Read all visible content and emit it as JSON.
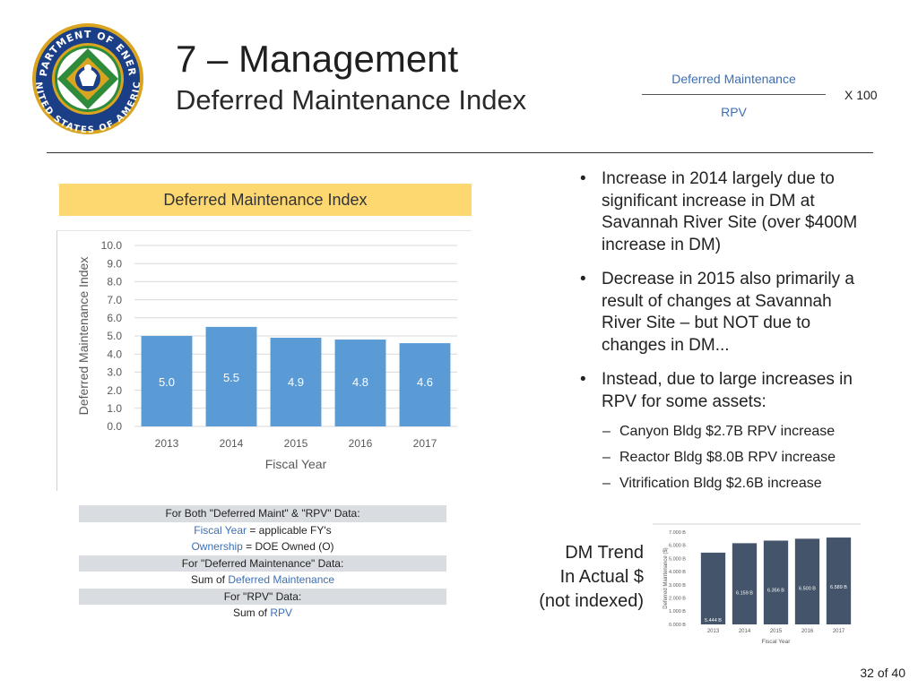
{
  "logo": {
    "name": "doe-seal",
    "text": "DEPARTMENT OF ENERGY UNITED STATES OF AMERICA",
    "colors": {
      "ring": "#1b3f86",
      "gold": "#d9a520",
      "green": "#2e8b3c",
      "white": "#ffffff"
    }
  },
  "header": {
    "title": "7 – Management",
    "subtitle": "Deferred Maintenance Index"
  },
  "formula": {
    "numerator": "Deferred Maintenance",
    "denominator": "RPV",
    "multiplier": "X  100"
  },
  "main_chart": {
    "header": "Deferred Maintenance Index"
  },
  "bullets": [
    {
      "text": "Increase in 2014 largely due to significant increase in DM at Savannah River Site (over $400M increase in DM)"
    },
    {
      "text": "Decrease in 2015 also primarily a result of changes at Savannah River Site – but NOT due to changes in DM..."
    },
    {
      "text": "Instead, due to large increases in RPV for some assets:"
    }
  ],
  "sub_bullets": [
    "Canyon Bldg $2.7B RPV increase",
    "Reactor Bldg $8.0B RPV increase",
    "Vitrification Bldg $2.6B increase"
  ],
  "criteria": {
    "row1": "For Both \"Deferred Maint\" & \"RPV\" Data:",
    "row2_key": "Fiscal Year",
    "row2_rest": " = applicable FY's",
    "row3_key": "Ownership",
    "row3_rest": " = DOE Owned (O)",
    "row4": "For \"Deferred Maintenance\" Data:",
    "row5_pre": "Sum of ",
    "row5_key": "Deferred Maintenance",
    "row6": "For \"RPV\" Data:",
    "row7_pre": "Sum of ",
    "row7_key": "RPV"
  },
  "trend_label": {
    "line1": "DM Trend",
    "line2": "In Actual $",
    "line3": "(not indexed)"
  },
  "page_number": "32 of 40",
  "chart_data": [
    {
      "type": "bar",
      "title": "Deferred Maintenance Index",
      "categories": [
        "2013",
        "2014",
        "2015",
        "2016",
        "2017"
      ],
      "values": [
        5.0,
        5.5,
        4.9,
        4.8,
        4.6
      ],
      "value_labels": [
        "5.0",
        "5.5",
        "4.9",
        "4.8",
        "4.6"
      ],
      "ylim": [
        0,
        10
      ],
      "yticks": [
        "0.0",
        "1.0",
        "2.0",
        "3.0",
        "4.0",
        "5.0",
        "6.0",
        "7.0",
        "8.0",
        "9.0",
        "10.0"
      ],
      "xlabel": "Fiscal Year",
      "ylabel": "Deferred Maintenance Index",
      "grid": true,
      "bar_color": "#5b9bd5"
    },
    {
      "type": "bar",
      "title": "",
      "categories": [
        "2013",
        "2014",
        "2015",
        "2016",
        "2017"
      ],
      "values": [
        5.444,
        6.159,
        6.356,
        6.5,
        6.589
      ],
      "value_labels": [
        "5.444 B",
        "6.159 B",
        "6.356 B",
        "6.500 B",
        "6.589 B"
      ],
      "ylim": [
        0,
        7
      ],
      "yticks": [
        "0.000 B",
        "1.000 B",
        "2.000 B",
        "3.000 B",
        "4.000 B",
        "5.000 B",
        "6.000 B",
        "7.000 B"
      ],
      "xlabel": "Fiscal Year",
      "ylabel": "Deferred Maintenance ($)",
      "grid": false,
      "bar_color": "#44546a"
    }
  ]
}
